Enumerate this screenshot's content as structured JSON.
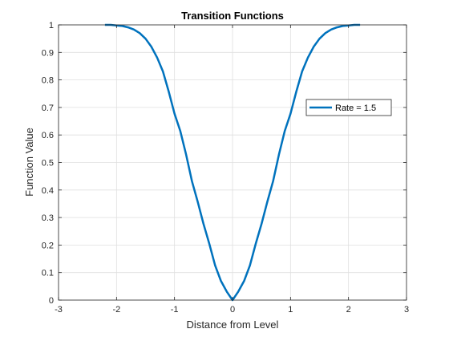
{
  "chart_data": {
    "type": "line",
    "title": "Transition Functions",
    "xlabel": "Distance from Level",
    "ylabel": "Function Value",
    "xlim": [
      -3,
      3
    ],
    "ylim": [
      0,
      1
    ],
    "xticks": [
      -3,
      -2,
      -1,
      0,
      1,
      2,
      3
    ],
    "xtick_labels": [
      "-3",
      "-2",
      "-1",
      "0",
      "1",
      "2",
      "3"
    ],
    "yticks": [
      0,
      0.1,
      0.2,
      0.3,
      0.4,
      0.5,
      0.6,
      0.7,
      0.8,
      0.9,
      1
    ],
    "ytick_labels": [
      "0",
      "0.1",
      "0.2",
      "0.3",
      "0.4",
      "0.5",
      "0.6",
      "0.7",
      "0.8",
      "0.9",
      "1"
    ],
    "grid": true,
    "legend_position": "right",
    "series": [
      {
        "name": "Rate = 1.5",
        "color": "#0072BD",
        "x": [
          -2.2,
          -2.1,
          -2.0,
          -1.9,
          -1.8,
          -1.7,
          -1.6,
          -1.5,
          -1.4,
          -1.3,
          -1.2,
          -1.1,
          -1.0,
          -0.9,
          -0.8,
          -0.7,
          -0.6,
          -0.5,
          -0.4,
          -0.3,
          -0.2,
          -0.1,
          0.0,
          0.1,
          0.2,
          0.3,
          0.4,
          0.5,
          0.6,
          0.7,
          0.8,
          0.9,
          1.0,
          1.1,
          1.2,
          1.3,
          1.4,
          1.5,
          1.6,
          1.7,
          1.8,
          1.9,
          2.0,
          2.1,
          2.2
        ],
        "y": [
          1.0,
          1.0,
          0.998,
          0.996,
          0.991,
          0.983,
          0.97,
          0.95,
          0.921,
          0.881,
          0.831,
          0.758,
          0.677,
          0.614,
          0.529,
          0.432,
          0.357,
          0.277,
          0.204,
          0.126,
          0.07,
          0.031,
          0.0,
          0.031,
          0.07,
          0.126,
          0.204,
          0.277,
          0.357,
          0.432,
          0.529,
          0.614,
          0.677,
          0.758,
          0.831,
          0.881,
          0.921,
          0.95,
          0.97,
          0.983,
          0.991,
          0.996,
          0.998,
          1.0,
          1.0
        ]
      }
    ]
  }
}
